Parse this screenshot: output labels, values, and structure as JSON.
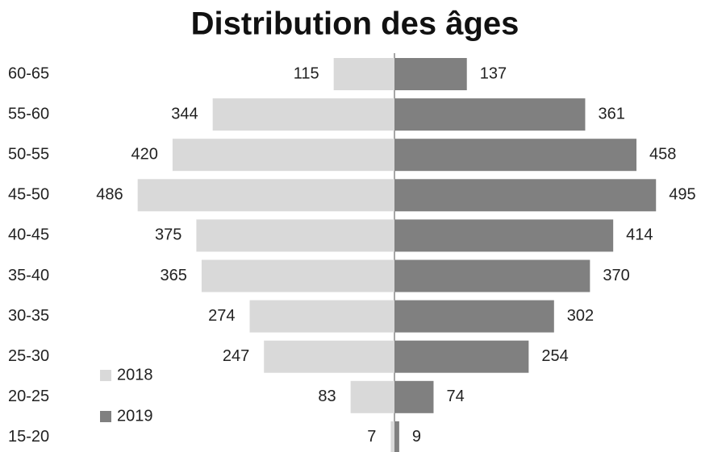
{
  "chart_data": {
    "type": "pyramid",
    "title": "Distribution des âges",
    "categories": [
      "60-65",
      "55-60",
      "50-55",
      "45-50",
      "40-45",
      "35-40",
      "30-35",
      "25-30",
      "20-25",
      "15-20"
    ],
    "series": [
      {
        "name": "2018",
        "color": "#d9d9d9",
        "values": [
          115,
          344,
          420,
          486,
          375,
          365,
          274,
          247,
          83,
          7
        ]
      },
      {
        "name": "2019",
        "color": "#808080",
        "values": [
          137,
          361,
          458,
          495,
          414,
          370,
          302,
          254,
          74,
          9
        ]
      }
    ]
  }
}
